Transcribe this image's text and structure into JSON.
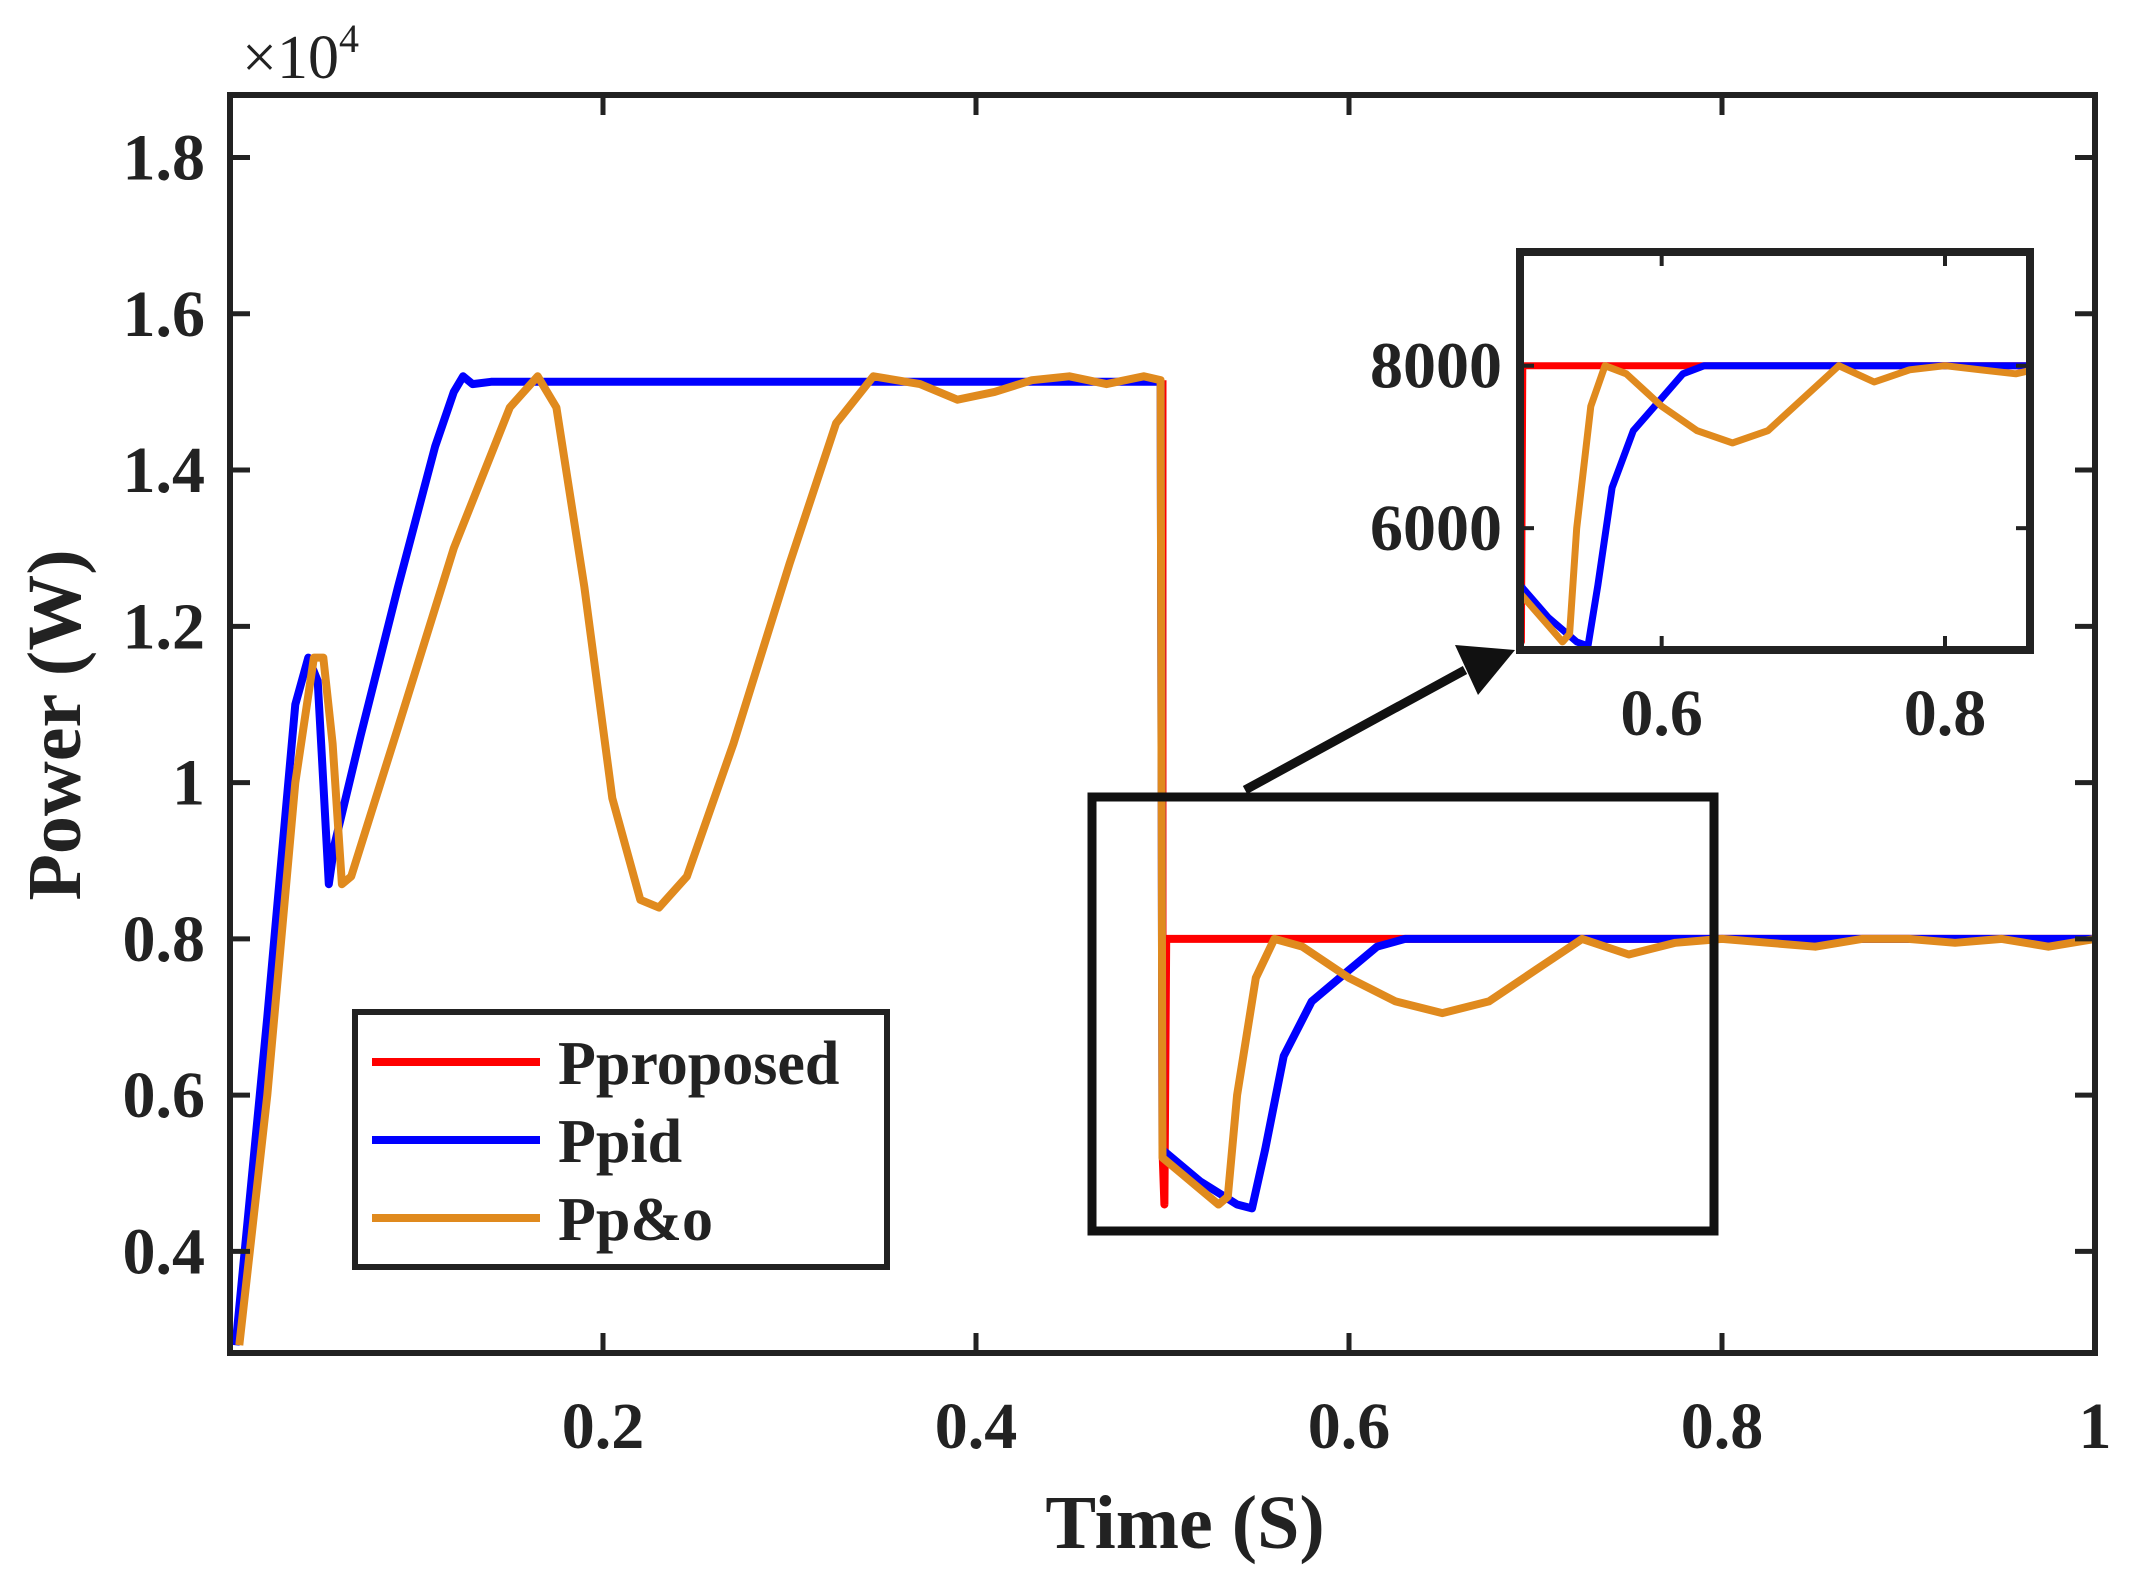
{
  "chart_data": {
    "type": "line",
    "xlabel": "Time (S)",
    "ylabel": "Power (W)",
    "y_multiplier": "×10",
    "y_multiplier_exponent": "4",
    "xlim": [
      0,
      1
    ],
    "ylim": [
      0.27,
      1.88
    ],
    "x_ticks": [
      0.2,
      0.4,
      0.6,
      0.8,
      1
    ],
    "x_tick_labels": [
      "0.2",
      "0.4",
      "0.6",
      "0.8",
      "1"
    ],
    "y_ticks": [
      0.4,
      0.6,
      0.8,
      1.0,
      1.2,
      1.4,
      1.6,
      1.8
    ],
    "y_tick_labels": [
      "0.4",
      "0.6",
      "0.8",
      "1",
      "1.2",
      "1.4",
      "1.6",
      "1.8"
    ],
    "grid": false,
    "legend_position": "bottom-left",
    "series": [
      {
        "name": "Pproposed",
        "color": "#ff0000",
        "points": [
          [
            0.5,
            1.515
          ],
          [
            0.5,
            0.53
          ],
          [
            0.501,
            0.46
          ],
          [
            0.502,
            0.8
          ],
          [
            1.0,
            0.8
          ]
        ]
      },
      {
        "name": "Ppid",
        "color": "#0000ff",
        "points": [
          [
            0.003,
            0.28
          ],
          [
            0.02,
            0.7
          ],
          [
            0.035,
            1.1
          ],
          [
            0.042,
            1.16
          ],
          [
            0.047,
            1.13
          ],
          [
            0.05,
            1.0
          ],
          [
            0.053,
            0.87
          ],
          [
            0.056,
            0.92
          ],
          [
            0.07,
            1.06
          ],
          [
            0.09,
            1.25
          ],
          [
            0.11,
            1.43
          ],
          [
            0.12,
            1.5
          ],
          [
            0.125,
            1.52
          ],
          [
            0.13,
            1.51
          ],
          [
            0.14,
            1.513
          ],
          [
            0.3,
            1.513
          ],
          [
            0.499,
            1.513
          ],
          [
            0.5,
            0.53
          ],
          [
            0.52,
            0.49
          ],
          [
            0.54,
            0.46
          ],
          [
            0.548,
            0.455
          ],
          [
            0.555,
            0.53
          ],
          [
            0.565,
            0.65
          ],
          [
            0.58,
            0.72
          ],
          [
            0.6,
            0.76
          ],
          [
            0.615,
            0.79
          ],
          [
            0.63,
            0.8
          ],
          [
            1.0,
            0.8
          ]
        ]
      },
      {
        "name": "Pp&o",
        "color": "#e08a1e",
        "points": [
          [
            0.005,
            0.28
          ],
          [
            0.02,
            0.6
          ],
          [
            0.035,
            1.0
          ],
          [
            0.045,
            1.16
          ],
          [
            0.05,
            1.16
          ],
          [
            0.055,
            1.05
          ],
          [
            0.06,
            0.87
          ],
          [
            0.065,
            0.88
          ],
          [
            0.09,
            1.07
          ],
          [
            0.12,
            1.3
          ],
          [
            0.15,
            1.48
          ],
          [
            0.165,
            1.52
          ],
          [
            0.175,
            1.48
          ],
          [
            0.19,
            1.25
          ],
          [
            0.205,
            0.98
          ],
          [
            0.22,
            0.85
          ],
          [
            0.23,
            0.84
          ],
          [
            0.245,
            0.88
          ],
          [
            0.27,
            1.05
          ],
          [
            0.3,
            1.28
          ],
          [
            0.325,
            1.46
          ],
          [
            0.345,
            1.52
          ],
          [
            0.37,
            1.51
          ],
          [
            0.39,
            1.49
          ],
          [
            0.41,
            1.5
          ],
          [
            0.43,
            1.515
          ],
          [
            0.45,
            1.52
          ],
          [
            0.47,
            1.51
          ],
          [
            0.49,
            1.52
          ],
          [
            0.499,
            1.515
          ],
          [
            0.5,
            0.52
          ],
          [
            0.51,
            0.5
          ],
          [
            0.52,
            0.48
          ],
          [
            0.53,
            0.46
          ],
          [
            0.535,
            0.47
          ],
          [
            0.54,
            0.6
          ],
          [
            0.55,
            0.75
          ],
          [
            0.56,
            0.8
          ],
          [
            0.575,
            0.79
          ],
          [
            0.6,
            0.75
          ],
          [
            0.625,
            0.72
          ],
          [
            0.65,
            0.705
          ],
          [
            0.675,
            0.72
          ],
          [
            0.7,
            0.76
          ],
          [
            0.725,
            0.8
          ],
          [
            0.75,
            0.78
          ],
          [
            0.775,
            0.795
          ],
          [
            0.8,
            0.8
          ],
          [
            0.825,
            0.795
          ],
          [
            0.85,
            0.79
          ],
          [
            0.875,
            0.8
          ],
          [
            0.9,
            0.8
          ],
          [
            0.925,
            0.795
          ],
          [
            0.95,
            0.8
          ],
          [
            0.975,
            0.79
          ],
          [
            1.0,
            0.8
          ]
        ]
      }
    ],
    "inset": {
      "xlim": [
        0.5,
        0.86
      ],
      "ylim": [
        4500,
        9400
      ],
      "x_ticks": [
        0.6,
        0.8
      ],
      "x_tick_labels": [
        "0.6",
        "0.8"
      ],
      "y_ticks": [
        6000,
        8000
      ],
      "y_tick_labels": [
        "6000",
        "8000"
      ],
      "source_region": {
        "xlim": [
          0.455,
          0.8
        ],
        "ylim": [
          0.42,
          0.975
        ]
      }
    }
  }
}
